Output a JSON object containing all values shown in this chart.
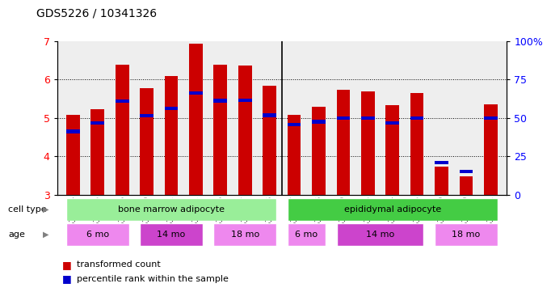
{
  "title": "GDS5226 / 10341326",
  "samples": [
    "GSM635884",
    "GSM635885",
    "GSM635886",
    "GSM635890",
    "GSM635891",
    "GSM635892",
    "GSM635896",
    "GSM635897",
    "GSM635898",
    "GSM635887",
    "GSM635888",
    "GSM635889",
    "GSM635893",
    "GSM635894",
    "GSM635895",
    "GSM635899",
    "GSM635900",
    "GSM635901"
  ],
  "red_values": [
    5.07,
    5.22,
    6.38,
    5.78,
    6.1,
    6.93,
    6.38,
    6.37,
    5.84,
    5.07,
    5.28,
    5.73,
    5.7,
    5.33,
    5.65,
    3.74,
    3.48,
    5.35
  ],
  "blue_values": [
    4.65,
    4.87,
    5.43,
    5.06,
    5.25,
    5.65,
    5.45,
    5.46,
    5.07,
    4.82,
    4.9,
    5.0,
    5.0,
    4.87,
    5.0,
    3.84,
    3.6,
    5.0
  ],
  "ylim": [
    3,
    7
  ],
  "y_ticks_left": [
    3,
    4,
    5,
    6,
    7
  ],
  "right_ytick_positions": [
    3,
    4,
    5,
    6,
    7
  ],
  "right_ylabels": [
    "0",
    "25",
    "50",
    "75",
    "100%"
  ],
  "bar_color": "#cc0000",
  "blue_color": "#0000cc",
  "plot_bg": "#eeeeee",
  "cell_type_groups": [
    {
      "label": "bone marrow adipocyte",
      "start": 0,
      "end": 8,
      "color": "#99ee99"
    },
    {
      "label": "epididymal adipocyte",
      "start": 9,
      "end": 17,
      "color": "#44cc44"
    }
  ],
  "age_groups": [
    {
      "label": "6 mo",
      "start": 0,
      "end": 2,
      "color": "#ee88ee"
    },
    {
      "label": "14 mo",
      "start": 3,
      "end": 5,
      "color": "#cc44cc"
    },
    {
      "label": "18 mo",
      "start": 6,
      "end": 8,
      "color": "#ee88ee"
    },
    {
      "label": "6 mo",
      "start": 9,
      "end": 10,
      "color": "#ee88ee"
    },
    {
      "label": "14 mo",
      "start": 11,
      "end": 14,
      "color": "#cc44cc"
    },
    {
      "label": "18 mo",
      "start": 15,
      "end": 17,
      "color": "#ee88ee"
    }
  ],
  "legend_red": "transformed count",
  "legend_blue": "percentile rank within the sample",
  "bar_width": 0.55,
  "separator_index": 8.5,
  "title_fontsize": 10,
  "tick_fontsize": 7,
  "label_fontsize": 8
}
